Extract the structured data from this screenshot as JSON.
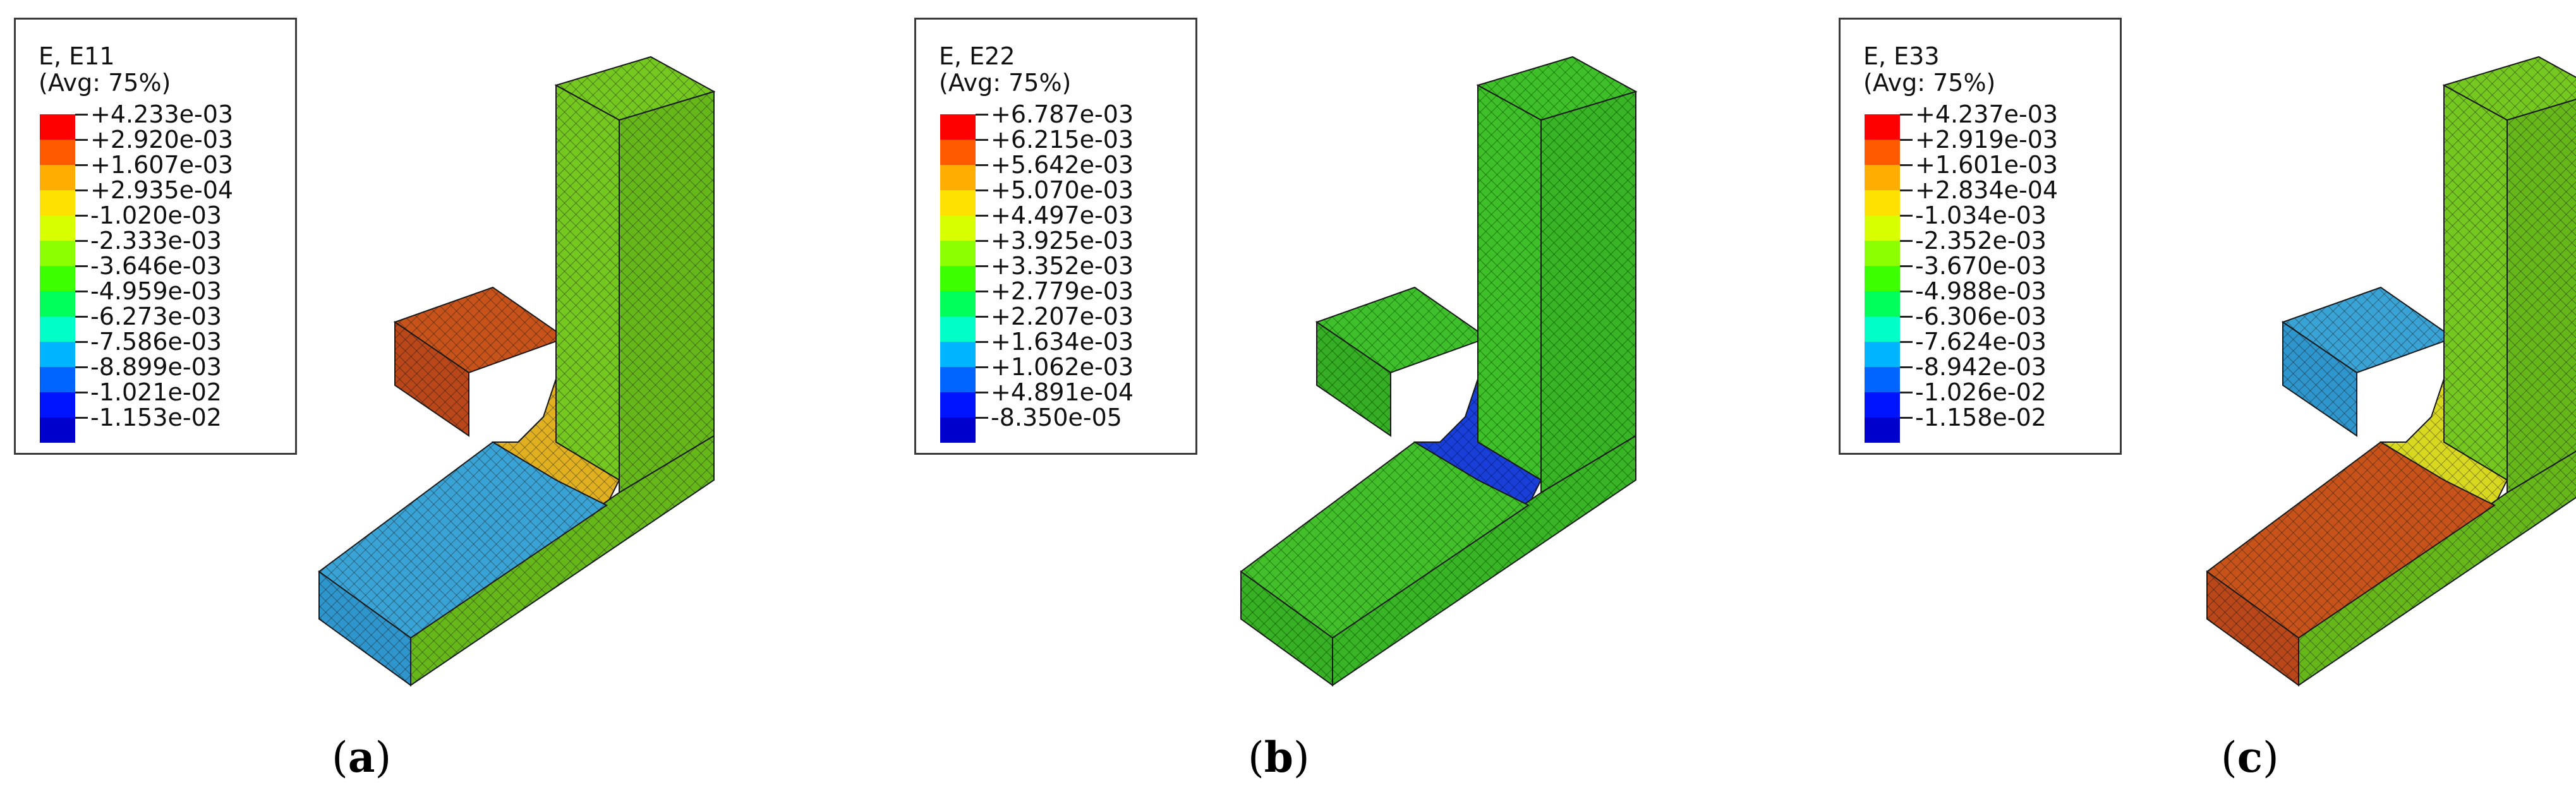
{
  "figure": {
    "panels": [
      {
        "id": "a",
        "caption_letter": "a",
        "legend": {
          "title_line1": "E, E11",
          "title_line2": "(Avg: 75%)",
          "labels": [
            "+4.233e-03",
            "+2.920e-03",
            "+1.607e-03",
            "+2.935e-04",
            "-1.020e-03",
            "-2.333e-03",
            "-3.646e-03",
            "-4.959e-03",
            "-6.273e-03",
            "-7.586e-03",
            "-8.899e-03",
            "-1.021e-02",
            "-1.153e-02"
          ]
        },
        "model_colors": {
          "upright": "#74c81f",
          "bottom_top": "#3aa3d6",
          "bottom_front": "#2e96cc",
          "cantilever_top": "#c8531a",
          "cantilever_front": "#b9471a",
          "fillet": "#e0b020",
          "upright_front": "#66b81a"
        }
      },
      {
        "id": "b",
        "caption_letter": "b",
        "legend": {
          "title_line1": "E, E22",
          "title_line2": "(Avg: 75%)",
          "labels": [
            "+6.787e-03",
            "+6.215e-03",
            "+5.642e-03",
            "+5.070e-03",
            "+4.497e-03",
            "+3.925e-03",
            "+3.352e-03",
            "+2.779e-03",
            "+2.207e-03",
            "+1.634e-03",
            "+1.062e-03",
            "+4.891e-04",
            "-8.350e-05"
          ]
        },
        "model_colors": {
          "upright": "#3fc02a",
          "bottom_top": "#43bf2c",
          "bottom_front": "#38b025",
          "cantilever_top": "#3fbf2c",
          "cantilever_front": "#35ad24",
          "fillet": "#1a3fd8",
          "upright_front": "#38b426"
        }
      },
      {
        "id": "c",
        "caption_letter": "c",
        "legend": {
          "title_line1": "E, E33",
          "title_line2": "(Avg: 75%)",
          "labels": [
            "+4.237e-03",
            "+2.919e-03",
            "+1.601e-03",
            "+2.834e-04",
            "-1.034e-03",
            "-2.352e-03",
            "-3.670e-03",
            "-4.988e-03",
            "-6.306e-03",
            "-7.624e-03",
            "-8.942e-03",
            "-1.026e-02",
            "-1.158e-02"
          ]
        },
        "model_colors": {
          "upright": "#74c81f",
          "bottom_top": "#c8531a",
          "bottom_front": "#b9471a",
          "cantilever_top": "#3aa3d6",
          "cantilever_front": "#2e96cc",
          "fillet": "#d8d820",
          "upright_front": "#66b81a"
        }
      }
    ],
    "colorbar": [
      "#ff0000",
      "#ff5a00",
      "#ffae00",
      "#ffe100",
      "#d8ff00",
      "#8cff00",
      "#3cff00",
      "#00ff5a",
      "#00ffc8",
      "#00b4ff",
      "#0064ff",
      "#0014ff",
      "#0000cc"
    ]
  }
}
